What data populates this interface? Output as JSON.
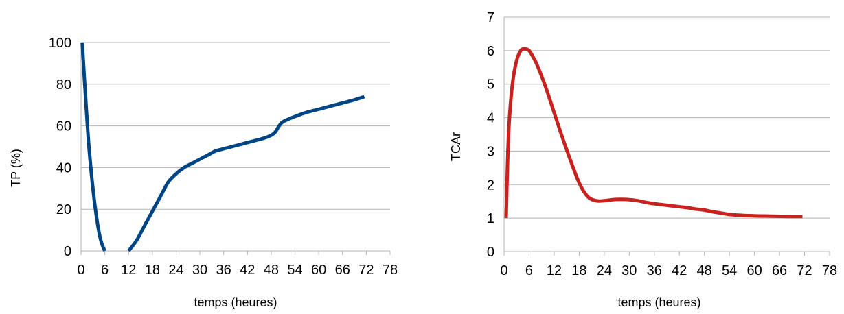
{
  "chart_data": [
    {
      "type": "line",
      "xlabel": "temps (heures)",
      "ylabel": "TP (%)",
      "xlim": [
        0,
        78
      ],
      "ylim": [
        0,
        100
      ],
      "x_ticks": [
        "0",
        "6",
        "12",
        "18",
        "24",
        "30",
        "36",
        "42",
        "48",
        "54",
        "60",
        "66",
        "72",
        "78"
      ],
      "y_ticks": [
        "0",
        "20",
        "40",
        "60",
        "80",
        "100"
      ],
      "grid": "horizontal",
      "legend": "none",
      "color": "#004586",
      "series": [
        {
          "segments": [
            [
              [
                0.3,
                100
              ],
              [
                1,
                78
              ],
              [
                2,
                50
              ],
              [
                3,
                30
              ],
              [
                4,
                15
              ],
              [
                5,
                5
              ],
              [
                6,
                0
              ]
            ],
            [
              [
                12,
                0
              ],
              [
                14,
                5
              ],
              [
                16,
                12
              ],
              [
                18,
                19
              ],
              [
                20,
                26
              ],
              [
                22,
                33
              ],
              [
                24,
                37
              ],
              [
                26,
                40
              ],
              [
                28,
                42
              ],
              [
                30,
                44
              ],
              [
                32,
                46
              ],
              [
                34,
                48
              ],
              [
                36,
                49
              ],
              [
                38,
                50
              ],
              [
                40,
                51
              ],
              [
                42,
                52
              ],
              [
                44,
                53
              ],
              [
                46,
                54
              ],
              [
                48,
                55.5
              ],
              [
                49,
                57
              ],
              [
                50,
                60
              ],
              [
                51,
                62
              ],
              [
                54,
                64.5
              ],
              [
                57,
                66.5
              ],
              [
                60,
                68
              ],
              [
                63,
                69.5
              ],
              [
                66,
                71
              ],
              [
                69,
                72.5
              ],
              [
                71.5,
                74
              ]
            ]
          ]
        }
      ]
    },
    {
      "type": "line",
      "xlabel": "temps (heures)",
      "ylabel": "TCAr",
      "xlim": [
        0,
        78
      ],
      "ylim": [
        0,
        7
      ],
      "x_ticks": [
        "0",
        "6",
        "12",
        "18",
        "24",
        "30",
        "36",
        "42",
        "48",
        "54",
        "60",
        "66",
        "72",
        "78"
      ],
      "y_ticks": [
        "0",
        "1",
        "2",
        "3",
        "4",
        "5",
        "6",
        "7"
      ],
      "grid": "horizontal",
      "legend": "none",
      "color": "#c9211e",
      "series": [
        {
          "segments": [
            [
              [
                0.5,
                1
              ],
              [
                0.8,
                2.5
              ],
              [
                1.2,
                3.8
              ],
              [
                2,
                5
              ],
              [
                3,
                5.7
              ],
              [
                4,
                6
              ],
              [
                5,
                6.05
              ],
              [
                6,
                6
              ],
              [
                7,
                5.8
              ],
              [
                8,
                5.55
              ],
              [
                10,
                4.9
              ],
              [
                12,
                4.15
              ],
              [
                14,
                3.4
              ],
              [
                16,
                2.7
              ],
              [
                18,
                2.05
              ],
              [
                20,
                1.65
              ],
              [
                22,
                1.52
              ],
              [
                24,
                1.52
              ],
              [
                26,
                1.55
              ],
              [
                28,
                1.56
              ],
              [
                30,
                1.55
              ],
              [
                32,
                1.52
              ],
              [
                34,
                1.47
              ],
              [
                36,
                1.43
              ],
              [
                38,
                1.4
              ],
              [
                40,
                1.37
              ],
              [
                42,
                1.34
              ],
              [
                44,
                1.31
              ],
              [
                46,
                1.27
              ],
              [
                48,
                1.24
              ],
              [
                50,
                1.19
              ],
              [
                52,
                1.15
              ],
              [
                54,
                1.11
              ],
              [
                56,
                1.09
              ],
              [
                60,
                1.07
              ],
              [
                64,
                1.06
              ],
              [
                68,
                1.05
              ],
              [
                71.5,
                1.05
              ]
            ]
          ]
        }
      ]
    }
  ]
}
